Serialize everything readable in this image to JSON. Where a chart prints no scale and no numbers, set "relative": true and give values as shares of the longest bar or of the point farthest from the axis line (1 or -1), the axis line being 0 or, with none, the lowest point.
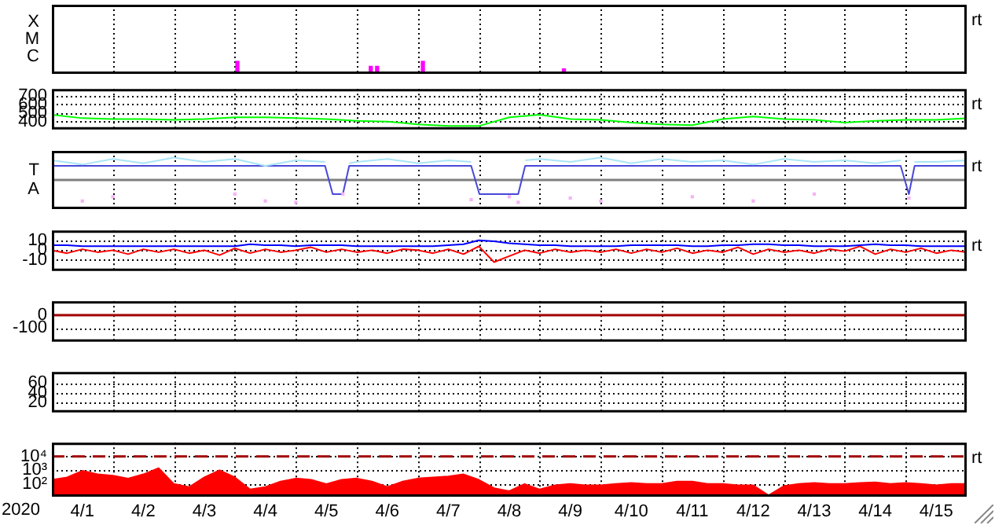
{
  "chart_data": [
    {
      "type": "bar",
      "relative": true,
      "x": [
        "2020-04-04T01:00",
        "2020-04-06T05:30",
        "2020-04-06T08:00",
        "2020-04-07T02:00",
        "2020-04-09T09:30"
      ],
      "values": [
        1,
        0.6,
        0.6,
        1,
        0.4
      ],
      "color": "#ff00ff",
      "xlim": [
        "2020-04-01",
        "2020-04-16"
      ],
      "xticks": [
        {
          "value": "2020-04-02",
          "label": null
        },
        {
          "value": "2020-04-03",
          "label": null
        },
        {
          "value": "2020-04-04",
          "label": null
        },
        {
          "value": "2020-04-05",
          "label": null
        },
        {
          "value": "2020-04-06",
          "label": null
        },
        {
          "value": "2020-04-07",
          "label": null
        },
        {
          "value": "2020-04-08",
          "label": null
        },
        {
          "value": "2020-04-09",
          "label": null
        },
        {
          "value": "2020-04-10",
          "label": null
        },
        {
          "value": "2020-04-11",
          "label": null
        },
        {
          "value": "2020-04-12",
          "label": null
        },
        {
          "value": "2020-04-13",
          "label": null
        },
        {
          "value": "2020-04-14",
          "label": null
        },
        {
          "value": "2020-04-15",
          "label": null
        }
      ],
      "grid": "x",
      "tick_labels": false,
      "annotations": [
        "X",
        "M",
        "C",
        "rt"
      ]
    },
    {
      "type": "line",
      "x": [
        "2020-04-01T00:00",
        "2020-04-01T12:00",
        "2020-04-02T00:00",
        "2020-04-02T12:00",
        "2020-04-03T00:00",
        "2020-04-03T12:00",
        "2020-04-04T00:00",
        "2020-04-04T12:00",
        "2020-04-05T00:00",
        "2020-04-05T12:00",
        "2020-04-06T00:00",
        "2020-04-06T12:00",
        "2020-04-07T00:00",
        "2020-04-07T12:00",
        "2020-04-08T00:00",
        "2020-04-08T12:00",
        "2020-04-09T00:00",
        "2020-04-09T12:00",
        "2020-04-10T00:00",
        "2020-04-10T12:00",
        "2020-04-11T00:00",
        "2020-04-11T12:00",
        "2020-04-12T00:00",
        "2020-04-12T12:00",
        "2020-04-13T00:00",
        "2020-04-13T12:00",
        "2020-04-14T00:00",
        "2020-04-14T12:00",
        "2020-04-15T00:00",
        "2020-04-15T12:00",
        "2020-04-16T00:00"
      ],
      "series": [
        {
          "color": "#00ff00",
          "values": [
            480,
            440,
            430,
            430,
            420,
            430,
            450,
            450,
            440,
            430,
            410,
            400,
            370,
            350,
            350,
            450,
            480,
            430,
            420,
            390,
            370,
            360,
            430,
            460,
            430,
            420,
            390,
            410,
            420,
            420,
            440
          ]
        }
      ],
      "ylim": [
        310,
        775
      ],
      "yticks": [
        400,
        500,
        600,
        700
      ],
      "xlim": [
        "2020-04-01",
        "2020-04-16"
      ],
      "xticks": [
        {
          "value": "2020-04-02",
          "label": null
        },
        {
          "value": "2020-04-03",
          "label": null
        },
        {
          "value": "2020-04-04",
          "label": null
        },
        {
          "value": "2020-04-05",
          "label": null
        },
        {
          "value": "2020-04-06",
          "label": null
        },
        {
          "value": "2020-04-07",
          "label": null
        },
        {
          "value": "2020-04-08",
          "label": null
        },
        {
          "value": "2020-04-09",
          "label": null
        },
        {
          "value": "2020-04-10",
          "label": null
        },
        {
          "value": "2020-04-11",
          "label": null
        },
        {
          "value": "2020-04-12",
          "label": null
        },
        {
          "value": "2020-04-13",
          "label": null
        },
        {
          "value": "2020-04-14",
          "label": null
        },
        {
          "value": "2020-04-15",
          "label": null
        }
      ],
      "grid": true,
      "tick_labels": "y",
      "annotations": [
        "rt"
      ]
    },
    {
      "type": "line",
      "relative": true,
      "x": [
        "2020-04-01T00:00",
        "2020-04-01T12:00",
        "2020-04-02T00:00",
        "2020-04-02T12:00",
        "2020-04-03T00:00",
        "2020-04-03T12:00",
        "2020-04-04T00:00",
        "2020-04-04T12:00",
        "2020-04-05T00:00",
        "2020-04-05T11:30",
        "2020-04-05T14:30",
        "2020-04-05T18:30",
        "2020-04-05T21:00",
        "2020-04-06T00:00",
        "2020-04-06T12:00",
        "2020-04-07T00:00",
        "2020-04-07T12:00",
        "2020-04-07T21:00",
        "2020-04-08T00:15",
        "2020-04-08T12:00",
        "2020-04-08T15:30",
        "2020-04-08T18:15",
        "2020-04-09T00:00",
        "2020-04-09T12:00",
        "2020-04-10T00:00",
        "2020-04-10T12:00",
        "2020-04-11T00:00",
        "2020-04-11T12:00",
        "2020-04-12T00:00",
        "2020-04-12T12:00",
        "2020-04-13T00:00",
        "2020-04-13T12:00",
        "2020-04-14T00:00",
        "2020-04-14T12:00",
        "2020-04-14T22:00",
        "2020-04-15T01:15",
        "2020-04-15T03:30",
        "2020-04-15T12:00",
        "2020-04-16T00:00"
      ],
      "series": [
        {
          "color": "#a8e4f8",
          "values": [
            0.88,
            0.69,
            0.94,
            0.75,
            1,
            0.81,
            0.94,
            0.63,
            0.88,
            0.81,
            null,
            null,
            0.75,
            0.81,
            0.94,
            0.75,
            0.88,
            0.81,
            null,
            null,
            null,
            0.88,
            0.94,
            0.81,
            1,
            0.75,
            0.94,
            0.81,
            0.88,
            0.69,
            0.94,
            0.81,
            0.88,
            0.75,
            0.88,
            null,
            0.81,
            0.81,
            0.88
          ]
        },
        {
          "type": "scatter",
          "marker": "square",
          "color": "#f4b4f4",
          "values": [
            null,
            -0.94,
            -0.75,
            null,
            null,
            null,
            -0.63,
            -0.94,
            -1,
            null,
            null,
            -0.63,
            null,
            null,
            null,
            null,
            null,
            -0.88,
            null,
            -0.75,
            -1,
            null,
            null,
            -0.81,
            -0.94,
            null,
            null,
            -0.75,
            null,
            -0.94,
            null,
            -0.63,
            null,
            null,
            null,
            -0.81,
            null,
            null,
            null
          ]
        },
        {
          "color": "#4848d8",
          "values": [
            0.63,
            0.63,
            0.63,
            0.63,
            0.63,
            0.63,
            0.63,
            0.63,
            0.63,
            0.63,
            -0.63,
            -0.63,
            0.63,
            0.63,
            0.63,
            0.63,
            0.63,
            0.63,
            -0.63,
            -0.63,
            -0.63,
            0.63,
            0.63,
            0.63,
            0.63,
            0.63,
            0.63,
            0.63,
            0.63,
            0.63,
            0.63,
            0.63,
            0.63,
            0.63,
            0.63,
            -0.63,
            0.63,
            0.63,
            0.63
          ]
        }
      ],
      "xlim": [
        "2020-04-01",
        "2020-04-16"
      ],
      "xticks": [
        {
          "value": "2020-04-02",
          "label": null
        },
        {
          "value": "2020-04-03",
          "label": null
        },
        {
          "value": "2020-04-04",
          "label": null
        },
        {
          "value": "2020-04-05",
          "label": null
        },
        {
          "value": "2020-04-06",
          "label": null
        },
        {
          "value": "2020-04-07",
          "label": null
        },
        {
          "value": "2020-04-08",
          "label": null
        },
        {
          "value": "2020-04-09",
          "label": null
        },
        {
          "value": "2020-04-10",
          "label": null
        },
        {
          "value": "2020-04-11",
          "label": null
        },
        {
          "value": "2020-04-12",
          "label": null
        },
        {
          "value": "2020-04-13",
          "label": null
        },
        {
          "value": "2020-04-14",
          "label": null
        },
        {
          "value": "2020-04-15",
          "label": null
        }
      ],
      "grid": "x",
      "tick_labels": false,
      "annotations": [
        "T",
        "A",
        "rt"
      ]
    },
    {
      "type": "line",
      "x": [
        "2020-04-01T00:00",
        "2020-04-01T06:00",
        "2020-04-01T12:00",
        "2020-04-01T18:00",
        "2020-04-02T00:00",
        "2020-04-02T06:00",
        "2020-04-02T12:00",
        "2020-04-02T18:00",
        "2020-04-03T00:00",
        "2020-04-03T06:00",
        "2020-04-03T12:00",
        "2020-04-03T18:00",
        "2020-04-04T00:00",
        "2020-04-04T06:00",
        "2020-04-04T12:00",
        "2020-04-04T18:00",
        "2020-04-05T00:00",
        "2020-04-05T06:00",
        "2020-04-05T12:00",
        "2020-04-05T18:00",
        "2020-04-06T00:00",
        "2020-04-06T06:00",
        "2020-04-06T12:00",
        "2020-04-06T18:00",
        "2020-04-07T00:00",
        "2020-04-07T06:00",
        "2020-04-07T12:00",
        "2020-04-07T18:00",
        "2020-04-08T00:00",
        "2020-04-08T06:00",
        "2020-04-08T12:00",
        "2020-04-08T18:00",
        "2020-04-09T00:00",
        "2020-04-09T06:00",
        "2020-04-09T12:00",
        "2020-04-09T18:00",
        "2020-04-10T00:00",
        "2020-04-10T06:00",
        "2020-04-10T12:00",
        "2020-04-10T18:00",
        "2020-04-11T00:00",
        "2020-04-11T06:00",
        "2020-04-11T12:00",
        "2020-04-11T18:00",
        "2020-04-12T00:00",
        "2020-04-12T06:00",
        "2020-04-12T12:00",
        "2020-04-12T18:00",
        "2020-04-13T00:00",
        "2020-04-13T06:00",
        "2020-04-13T12:00",
        "2020-04-13T18:00",
        "2020-04-14T00:00",
        "2020-04-14T06:00",
        "2020-04-14T12:00",
        "2020-04-14T18:00",
        "2020-04-15T00:00",
        "2020-04-15T06:00",
        "2020-04-15T12:00",
        "2020-04-15T18:00",
        "2020-04-16T00:00"
      ],
      "series": [
        {
          "color": "#0000ff",
          "values": [
            5,
            5,
            4,
            4,
            4,
            4,
            4,
            4,
            4,
            4,
            4,
            4,
            4,
            6,
            5,
            5,
            4,
            5,
            5,
            5,
            4,
            4,
            4,
            4,
            4,
            4,
            5,
            6,
            10,
            9,
            7,
            6,
            5,
            5,
            4,
            4,
            4,
            4,
            5,
            5,
            5,
            5,
            4,
            4,
            5,
            5,
            6,
            6,
            5,
            5,
            4,
            4,
            4,
            5,
            6,
            5,
            5,
            4,
            4,
            4,
            4
          ]
        },
        {
          "color": "#ff0000",
          "values": [
            0,
            -3,
            1,
            -2,
            0,
            -4,
            1,
            -2,
            1,
            -3,
            0,
            -5,
            2,
            -3,
            1,
            -2,
            0,
            3,
            -2,
            1,
            -2,
            0,
            -3,
            1,
            0,
            -3,
            1,
            -4,
            4,
            -12,
            -6,
            0,
            -3,
            1,
            -2,
            0,
            -2,
            1,
            -3,
            1,
            -2,
            2,
            -3,
            0,
            -2,
            3,
            -4,
            1,
            -2,
            0,
            -3,
            1,
            -1,
            4,
            -4,
            1,
            -2,
            2,
            -3,
            0,
            -2
          ]
        }
      ],
      "ylim": [
        -21,
        20
      ],
      "yticks": [
        -10,
        0,
        10
      ],
      "xlim": [
        "2020-04-01",
        "2020-04-16"
      ],
      "xticks": [
        {
          "value": "2020-04-02",
          "label": null
        },
        {
          "value": "2020-04-03",
          "label": null
        },
        {
          "value": "2020-04-04",
          "label": null
        },
        {
          "value": "2020-04-05",
          "label": null
        },
        {
          "value": "2020-04-06",
          "label": null
        },
        {
          "value": "2020-04-07",
          "label": null
        },
        {
          "value": "2020-04-08",
          "label": null
        },
        {
          "value": "2020-04-09",
          "label": null
        },
        {
          "value": "2020-04-10",
          "label": null
        },
        {
          "value": "2020-04-11",
          "label": null
        },
        {
          "value": "2020-04-12",
          "label": null
        },
        {
          "value": "2020-04-13",
          "label": null
        },
        {
          "value": "2020-04-14",
          "label": null
        },
        {
          "value": "2020-04-15",
          "label": null
        }
      ],
      "grid": true,
      "tick_labels": "y",
      "annotations": [
        "rt"
      ]
    },
    {
      "type": "line",
      "ylim": [
        -205,
        107
      ],
      "yticks": [
        -100,
        0
      ],
      "ref_lines": [
        {
          "axis": "y",
          "value": 0,
          "color": "#a00000"
        }
      ],
      "xlim": [
        "2020-04-01",
        "2020-04-16"
      ],
      "xticks": [
        {
          "value": "2020-04-02",
          "label": null
        },
        {
          "value": "2020-04-03",
          "label": null
        },
        {
          "value": "2020-04-04",
          "label": null
        },
        {
          "value": "2020-04-05",
          "label": null
        },
        {
          "value": "2020-04-06",
          "label": null
        },
        {
          "value": "2020-04-07",
          "label": null
        },
        {
          "value": "2020-04-08",
          "label": null
        },
        {
          "value": "2020-04-09",
          "label": null
        },
        {
          "value": "2020-04-10",
          "label": null
        },
        {
          "value": "2020-04-11",
          "label": null
        },
        {
          "value": "2020-04-12",
          "label": null
        },
        {
          "value": "2020-04-13",
          "label": null
        },
        {
          "value": "2020-04-14",
          "label": null
        },
        {
          "value": "2020-04-15",
          "label": null
        }
      ],
      "grid": true,
      "tick_labels": "y"
    },
    {
      "type": "line",
      "ylim": [
        0,
        82
      ],
      "yticks": [
        20,
        40,
        60
      ],
      "xlim": [
        "2020-04-01",
        "2020-04-16"
      ],
      "xticks": [
        {
          "value": "2020-04-02",
          "label": null
        },
        {
          "value": "2020-04-03",
          "label": null
        },
        {
          "value": "2020-04-04",
          "label": null
        },
        {
          "value": "2020-04-05",
          "label": null
        },
        {
          "value": "2020-04-06",
          "label": null
        },
        {
          "value": "2020-04-07",
          "label": null
        },
        {
          "value": "2020-04-08",
          "label": null
        },
        {
          "value": "2020-04-09",
          "label": null
        },
        {
          "value": "2020-04-10",
          "label": null
        },
        {
          "value": "2020-04-11",
          "label": null
        },
        {
          "value": "2020-04-12",
          "label": null
        },
        {
          "value": "2020-04-13",
          "label": null
        },
        {
          "value": "2020-04-14",
          "label": null
        },
        {
          "value": "2020-04-15",
          "label": null
        }
      ],
      "grid": true,
      "tick_labels": "y"
    },
    {
      "type": "area",
      "xlabel": "2020",
      "x": [
        "2020-04-01T00:00",
        "2020-04-01T06:00",
        "2020-04-01T12:00",
        "2020-04-01T18:00",
        "2020-04-02T00:00",
        "2020-04-02T06:00",
        "2020-04-02T12:00",
        "2020-04-02T18:00",
        "2020-04-03T00:00",
        "2020-04-03T06:00",
        "2020-04-03T12:00",
        "2020-04-03T18:00",
        "2020-04-04T00:00",
        "2020-04-04T06:00",
        "2020-04-04T12:00",
        "2020-04-04T18:00",
        "2020-04-05T00:00",
        "2020-04-05T06:00",
        "2020-04-05T12:00",
        "2020-04-05T18:00",
        "2020-04-06T00:00",
        "2020-04-06T06:00",
        "2020-04-06T12:00",
        "2020-04-06T18:00",
        "2020-04-07T00:00",
        "2020-04-07T06:00",
        "2020-04-07T12:00",
        "2020-04-07T18:00",
        "2020-04-08T00:00",
        "2020-04-08T06:00",
        "2020-04-08T12:00",
        "2020-04-08T18:00",
        "2020-04-09T00:00",
        "2020-04-09T06:00",
        "2020-04-09T12:00",
        "2020-04-09T18:00",
        "2020-04-10T00:00",
        "2020-04-10T06:00",
        "2020-04-10T12:00",
        "2020-04-10T18:00",
        "2020-04-11T00:00",
        "2020-04-11T06:00",
        "2020-04-11T12:00",
        "2020-04-11T18:00",
        "2020-04-12T00:00",
        "2020-04-12T06:00",
        "2020-04-12T12:00",
        "2020-04-12T18:00",
        "2020-04-13T00:00",
        "2020-04-13T06:00",
        "2020-04-13T12:00",
        "2020-04-13T18:00",
        "2020-04-14T00:00",
        "2020-04-14T06:00",
        "2020-04-14T12:00",
        "2020-04-14T18:00",
        "2020-04-15T00:00",
        "2020-04-15T06:00",
        "2020-04-15T12:00",
        "2020-04-15T18:00",
        "2020-04-16T00:00"
      ],
      "series": [
        {
          "color": "#ff0000",
          "values": [
            200,
            300,
            900,
            500,
            400,
            250,
            500,
            1400,
            100,
            60,
            300,
            1000,
            300,
            40,
            60,
            150,
            250,
            200,
            100,
            200,
            250,
            150,
            60,
            150,
            250,
            300,
            350,
            500,
            200,
            50,
            30,
            100,
            40,
            80,
            100,
            80,
            80,
            100,
            120,
            100,
            100,
            150,
            150,
            100,
            100,
            80,
            80,
            15,
            70,
            100,
            120,
            100,
            100,
            120,
            130,
            100,
            120,
            100,
            80,
            100,
            100
          ]
        }
      ],
      "log": true,
      "ylim": [
        12,
        100000
      ],
      "yticks": [
        {
          "value": 100,
          "label": "10²"
        },
        {
          "value": 1000,
          "label": "10³"
        },
        {
          "value": 10000,
          "label": "10⁴"
        }
      ],
      "ref_lines": [
        {
          "axis": "y",
          "value": 10000,
          "color": "#a00000",
          "line_style": "dashed"
        }
      ],
      "xlim": [
        "2020-04-01",
        "2020-04-16"
      ],
      "xticks": [
        {
          "value": "2020-04-01T12:00",
          "label": "4/1"
        },
        {
          "value": "2020-04-02",
          "label": null
        },
        {
          "value": "2020-04-02T12:00",
          "label": "4/2"
        },
        {
          "value": "2020-04-03",
          "label": null
        },
        {
          "value": "2020-04-03T12:00",
          "label": "4/3"
        },
        {
          "value": "2020-04-04",
          "label": null
        },
        {
          "value": "2020-04-04T12:00",
          "label": "4/4"
        },
        {
          "value": "2020-04-05",
          "label": null
        },
        {
          "value": "2020-04-05T12:00",
          "label": "4/5"
        },
        {
          "value": "2020-04-06",
          "label": null
        },
        {
          "value": "2020-04-06T12:00",
          "label": "4/6"
        },
        {
          "value": "2020-04-07",
          "label": null
        },
        {
          "value": "2020-04-07T12:00",
          "label": "4/7"
        },
        {
          "value": "2020-04-08",
          "label": null
        },
        {
          "value": "2020-04-08T12:00",
          "label": "4/8"
        },
        {
          "value": "2020-04-09",
          "label": null
        },
        {
          "value": "2020-04-09T12:00",
          "label": "4/9"
        },
        {
          "value": "2020-04-10",
          "label": null
        },
        {
          "value": "2020-04-10T12:00",
          "label": "4/10"
        },
        {
          "value": "2020-04-11",
          "label": null
        },
        {
          "value": "2020-04-11T12:00",
          "label": "4/11"
        },
        {
          "value": "2020-04-12",
          "label": null
        },
        {
          "value": "2020-04-12T12:00",
          "label": "4/12"
        },
        {
          "value": "2020-04-13",
          "label": null
        },
        {
          "value": "2020-04-13T12:00",
          "label": "4/13"
        },
        {
          "value": "2020-04-14",
          "label": null
        },
        {
          "value": "2020-04-14T12:00",
          "label": "4/14"
        },
        {
          "value": "2020-04-15",
          "label": null
        },
        {
          "value": "2020-04-15T12:00",
          "label": "4/15"
        }
      ],
      "grid": true,
      "annotations": [
        "rt"
      ]
    }
  ]
}
